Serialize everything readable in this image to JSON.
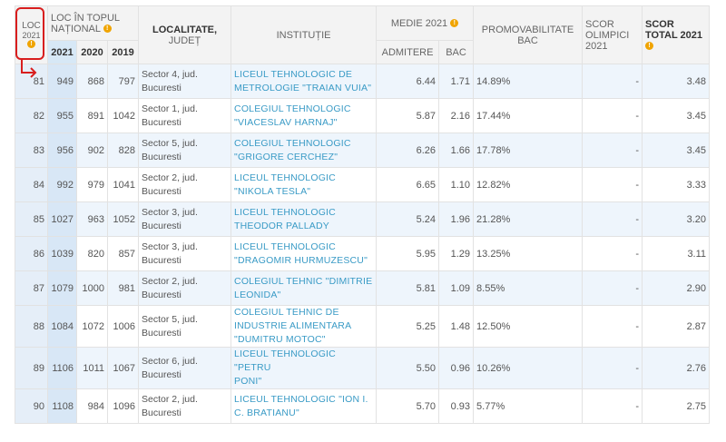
{
  "header": {
    "loc_label": "LOC",
    "loc_year": "2021",
    "loc_top_label": "LOC ÎN TOPUL NAȚIONAL",
    "year_2021": "2021",
    "year_2020": "2020",
    "year_2019": "2019",
    "localitate_label": "LOCALITATE,",
    "judet_label": "JUDEȚ",
    "institutie_label": "INSTITUȚIE",
    "medie_label": "MEDIE 2021",
    "admitere_label": "ADMITERE",
    "bac_label": "BAC",
    "promovabilitate_label": "PROMOVABILITATE BAC",
    "scor_olimpici_label": "SCOR OLIMPICI 2021",
    "scor_total_label": "SCOR TOTAL 2021",
    "info_glyph": "!"
  },
  "rows": [
    {
      "loc": "81",
      "y2021": "949",
      "y2020": "868",
      "y2019": "797",
      "loc_line1": "Sector 4, jud.",
      "loc_line2": "Bucuresti",
      "inst_line1": "LICEUL TEHNOLOGIC DE",
      "inst_line2": "METROLOGIE \"TRAIAN VUIA\"",
      "inst_line3": "",
      "admitere": "6.44",
      "bac": "1.71",
      "promovabilitate": "14.89%",
      "olimpici": "-",
      "total": "3.48"
    },
    {
      "loc": "82",
      "y2021": "955",
      "y2020": "891",
      "y2019": "1042",
      "loc_line1": "Sector 1, jud.",
      "loc_line2": "Bucuresti",
      "inst_line1": "COLEGIUL TEHNOLOGIC",
      "inst_line2": "\"VIACESLAV HARNAJ\"",
      "inst_line3": "",
      "admitere": "5.87",
      "bac": "2.16",
      "promovabilitate": "17.44%",
      "olimpici": "-",
      "total": "3.45"
    },
    {
      "loc": "83",
      "y2021": "956",
      "y2020": "902",
      "y2019": "828",
      "loc_line1": "Sector 5, jud.",
      "loc_line2": "Bucuresti",
      "inst_line1": "COLEGIUL TEHNOLOGIC",
      "inst_line2": "\"GRIGORE CERCHEZ\"",
      "inst_line3": "",
      "admitere": "6.26",
      "bac": "1.66",
      "promovabilitate": "17.78%",
      "olimpici": "-",
      "total": "3.45"
    },
    {
      "loc": "84",
      "y2021": "992",
      "y2020": "979",
      "y2019": "1041",
      "loc_line1": "Sector 2, jud.",
      "loc_line2": "Bucuresti",
      "inst_line1": "LICEUL TEHNOLOGIC",
      "inst_line2": "\"NIKOLA TESLA\"",
      "inst_line3": "",
      "admitere": "6.65",
      "bac": "1.10",
      "promovabilitate": "12.82%",
      "olimpici": "-",
      "total": "3.33"
    },
    {
      "loc": "85",
      "y2021": "1027",
      "y2020": "963",
      "y2019": "1052",
      "loc_line1": "Sector 3, jud.",
      "loc_line2": "Bucuresti",
      "inst_line1": "LICEUL TEHNOLOGIC",
      "inst_line2": "THEODOR PALLADY",
      "inst_line3": "",
      "admitere": "5.24",
      "bac": "1.96",
      "promovabilitate": "21.28%",
      "olimpici": "-",
      "total": "3.20"
    },
    {
      "loc": "86",
      "y2021": "1039",
      "y2020": "820",
      "y2019": "857",
      "loc_line1": "Sector 3, jud.",
      "loc_line2": "Bucuresti",
      "inst_line1": "LICEUL TEHNOLOGIC",
      "inst_line2": "\"DRAGOMIR HURMUZESCU\"",
      "inst_line3": "",
      "admitere": "5.95",
      "bac": "1.29",
      "promovabilitate": "13.25%",
      "olimpici": "-",
      "total": "3.11"
    },
    {
      "loc": "87",
      "y2021": "1079",
      "y2020": "1000",
      "y2019": "981",
      "loc_line1": "Sector 2, jud.",
      "loc_line2": "Bucuresti",
      "inst_line1": "COLEGIUL TEHNIC \"DIMITRIE",
      "inst_line2": "LEONIDA\"",
      "inst_line3": "",
      "admitere": "5.81",
      "bac": "1.09",
      "promovabilitate": "8.55%",
      "olimpici": "-",
      "total": "2.90"
    },
    {
      "loc": "88",
      "y2021": "1084",
      "y2020": "1072",
      "y2019": "1006",
      "loc_line1": "Sector 5, jud.",
      "loc_line2": "Bucuresti",
      "inst_line1": "COLEGIUL TEHNIC DE",
      "inst_line2": "INDUSTRIE ALIMENTARA",
      "inst_line3": "\"DUMITRU MOTOC\"",
      "admitere": "5.25",
      "bac": "1.48",
      "promovabilitate": "12.50%",
      "olimpici": "-",
      "total": "2.87"
    },
    {
      "loc": "89",
      "y2021": "1106",
      "y2020": "1011",
      "y2019": "1067",
      "loc_line1": "Sector 6, jud.",
      "loc_line2": "Bucuresti",
      "inst_line1": "LICEUL TEHNOLOGIC \"PETRU",
      "inst_line2": "PONI\"",
      "inst_line3": "",
      "admitere": "5.50",
      "bac": "0.96",
      "promovabilitate": "10.26%",
      "olimpici": "-",
      "total": "2.76"
    },
    {
      "loc": "90",
      "y2021": "1108",
      "y2020": "984",
      "y2019": "1096",
      "loc_line1": "Sector 2, jud.",
      "loc_line2": "Bucuresti",
      "inst_line1": "LICEUL TEHNOLOGIC \"ION I.",
      "inst_line2": "C. BRATIANU\"",
      "inst_line3": "",
      "admitere": "5.70",
      "bac": "0.93",
      "promovabilitate": "5.77%",
      "olimpici": "-",
      "total": "2.75"
    }
  ],
  "colors": {
    "annotation": "#d81e1e",
    "link": "#3a9bc6",
    "info_badge": "#f0a400",
    "row_alt": "#eef5fc",
    "col_highlight": "#d8e7f6"
  },
  "icons": {
    "info": "info-icon",
    "annotation_arrow": "arrow-down-right-icon"
  }
}
